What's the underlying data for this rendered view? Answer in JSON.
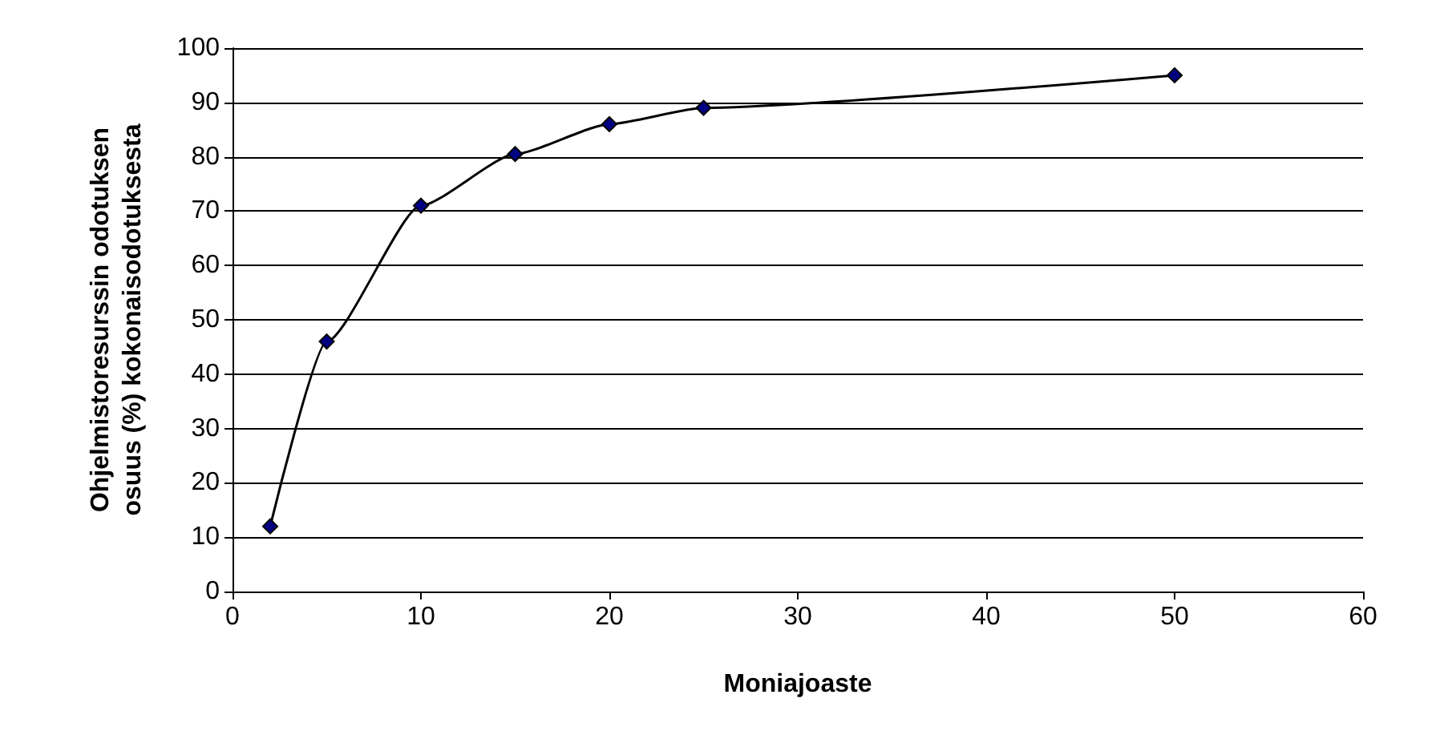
{
  "chart_data": {
    "type": "line",
    "xlabel": "Moniajoaste",
    "ylabel": "Ohjelmistoresurssin odotuksen\nosuus (%) kokonaisodotuksesta",
    "x": [
      2,
      5,
      10,
      15,
      20,
      25,
      50
    ],
    "series": [
      {
        "color": "#000080",
        "values": [
          12,
          46,
          71,
          80.5,
          86,
          89,
          95
        ]
      }
    ],
    "xlim": [
      0,
      60
    ],
    "xticks": [
      0,
      10,
      20,
      30,
      40,
      50,
      60
    ],
    "ylim": [
      0,
      100
    ],
    "yticks": [
      0,
      10,
      20,
      30,
      40,
      50,
      60,
      70,
      80,
      90,
      100
    ],
    "grid": "y",
    "marker": "diamond",
    "line_style": "solid"
  }
}
